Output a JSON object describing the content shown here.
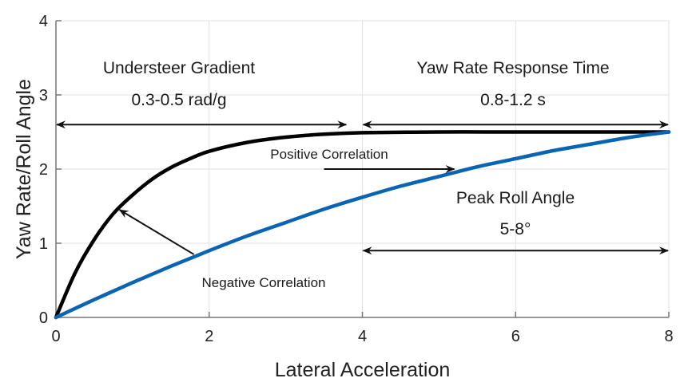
{
  "chart_data": {
    "type": "line",
    "title": "",
    "xlabel": "Lateral Acceleration",
    "ylabel": "Yaw Rate/Roll Angle",
    "xlim": [
      0,
      8
    ],
    "ylim": [
      0,
      4
    ],
    "xticks": [
      0,
      2,
      4,
      6,
      8
    ],
    "yticks": [
      0,
      1,
      2,
      3,
      4
    ],
    "grid": true,
    "legend": null,
    "series": [
      {
        "name": "Yaw Rate",
        "color": "#000000",
        "x": [
          0,
          0.25,
          0.5,
          0.75,
          1.0,
          1.25,
          1.5,
          1.75,
          2.0,
          2.5,
          3.0,
          3.5,
          4.0,
          5.0,
          6.0,
          7.0,
          8.0
        ],
        "y": [
          0,
          0.6,
          1.05,
          1.4,
          1.65,
          1.86,
          2.02,
          2.14,
          2.24,
          2.36,
          2.43,
          2.47,
          2.49,
          2.5,
          2.5,
          2.5,
          2.5
        ]
      },
      {
        "name": "Roll Angle",
        "color": "#0a64b4",
        "x": [
          0,
          0.5,
          1.0,
          1.5,
          2.0,
          2.5,
          3.0,
          3.5,
          4.0,
          4.5,
          5.0,
          5.5,
          6.0,
          6.5,
          7.0,
          7.5,
          8.0
        ],
        "y": [
          0,
          0.24,
          0.47,
          0.69,
          0.9,
          1.1,
          1.28,
          1.46,
          1.62,
          1.77,
          1.9,
          2.03,
          2.14,
          2.25,
          2.34,
          2.43,
          2.5
        ]
      }
    ],
    "annotations": [
      {
        "id": "understeer",
        "lines": [
          "Understeer Gradient",
          "0.3-0.5 rad/g"
        ],
        "arrow": {
          "type": "double",
          "x": [
            0,
            3.8
          ],
          "y": 2.6
        }
      },
      {
        "id": "yaw-response",
        "lines": [
          "Yaw Rate Response Time",
          "0.8-1.2 s"
        ],
        "arrow": {
          "type": "double",
          "x": [
            4.0,
            8.0
          ],
          "y": 2.6
        }
      },
      {
        "id": "positive-correlation",
        "lines": [
          "Positive Correlation"
        ],
        "arrow": {
          "type": "single",
          "from": [
            3.5,
            2.0
          ],
          "to": [
            5.2,
            2.0
          ]
        }
      },
      {
        "id": "peak-roll",
        "lines": [
          "Peak Roll Angle",
          "5-8°"
        ],
        "arrow": {
          "type": "double",
          "x": [
            4.0,
            8.0
          ],
          "y": 0.9
        }
      },
      {
        "id": "negative-correlation",
        "lines": [
          "Negative Correlation"
        ],
        "arrow": {
          "type": "single",
          "from": [
            1.8,
            0.85
          ],
          "to": [
            0.83,
            1.45
          ]
        }
      }
    ]
  }
}
